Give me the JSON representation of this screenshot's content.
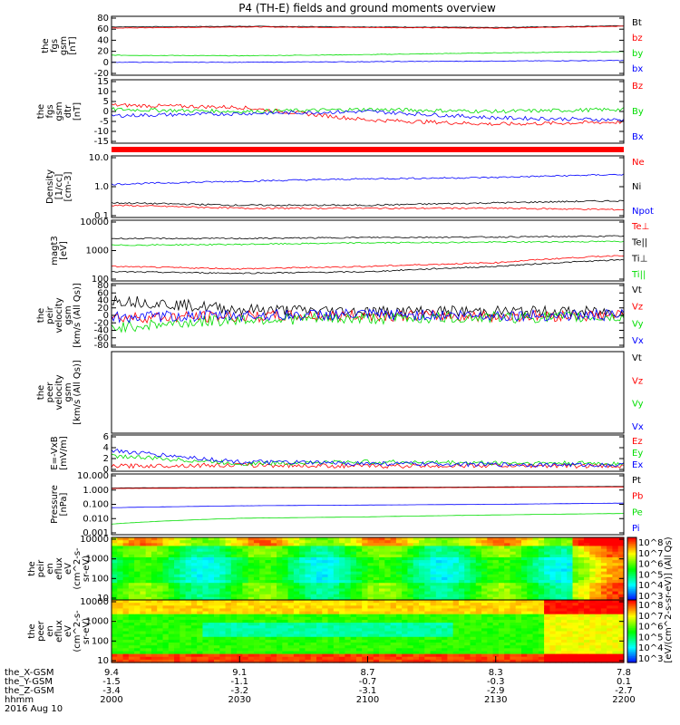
{
  "title": "P4 (TH-E) fields and ground moments overview",
  "colors": {
    "black": "#000000",
    "red": "#ff0000",
    "green": "#00dd00",
    "blue": "#0000ff"
  },
  "panels": [
    {
      "id": "fgs1",
      "ylabel": [
        "the",
        "fgs",
        "gsm",
        "[nT]"
      ],
      "ticks": [
        "80",
        "60",
        "40",
        "20",
        "0",
        "-20"
      ],
      "legend": [
        {
          "label": "Bt",
          "color": "black"
        },
        {
          "label": "bz",
          "color": "red"
        },
        {
          "label": "by",
          "color": "green"
        },
        {
          "label": "bx",
          "color": "blue"
        }
      ]
    },
    {
      "id": "fgs2",
      "ylabel": [
        "the",
        "fgs",
        "gsm",
        "dtr",
        "[nT]"
      ],
      "ticks": [
        "15",
        "10",
        "5",
        "0",
        "-5",
        "-10",
        "-15"
      ],
      "legend": [
        {
          "label": "Bz",
          "color": "red"
        },
        {
          "label": "By",
          "color": "green"
        },
        {
          "label": "Bx",
          "color": "blue"
        }
      ]
    },
    {
      "id": "density",
      "ylabel": [
        "Density",
        "[1/cc]",
        "[cm-3]"
      ],
      "ticks": [
        "10.0",
        "1.0",
        "0.1"
      ],
      "legend": [
        {
          "label": "Ne",
          "color": "red"
        },
        {
          "label": "Ni",
          "color": "black"
        },
        {
          "label": "Npot",
          "color": "blue"
        }
      ]
    },
    {
      "id": "temp",
      "ylabel": [
        "magt3",
        "[eV]"
      ],
      "ticks": [
        "10000",
        "1000",
        "100"
      ],
      "legend": [
        {
          "label": "Te⊥",
          "color": "red"
        },
        {
          "label": "Te||",
          "color": "black"
        },
        {
          "label": "Ti⊥",
          "color": "black"
        },
        {
          "label": "Ti||",
          "color": "green"
        }
      ]
    },
    {
      "id": "peir_vel",
      "ylabel": [
        "the",
        "peir",
        "velocity",
        "gsm",
        "[km/s (All Qs)]"
      ],
      "ticks": [
        "80",
        "60",
        "40",
        "20",
        "0",
        "-20",
        "-40",
        "-60",
        "-80"
      ],
      "legend": [
        {
          "label": "Vt",
          "color": "black"
        },
        {
          "label": "Vz",
          "color": "red"
        },
        {
          "label": "Vy",
          "color": "green"
        },
        {
          "label": "Vx",
          "color": "blue"
        }
      ]
    },
    {
      "id": "peer_vel",
      "ylabel": [
        "the",
        "peer",
        "velocity",
        "gsm",
        "[km/s (All Qs)]"
      ],
      "ticks": [],
      "legend": [
        {
          "label": "Vt",
          "color": "black"
        },
        {
          "label": "Vz",
          "color": "red"
        },
        {
          "label": "Vy",
          "color": "green"
        },
        {
          "label": "Vx",
          "color": "blue"
        }
      ]
    },
    {
      "id": "efield",
      "ylabel": [
        "E=-VxB",
        "[mV/m]"
      ],
      "ticks": [
        "6",
        "4",
        "2",
        "0"
      ],
      "legend": [
        {
          "label": "Ez",
          "color": "red"
        },
        {
          "label": "Ey",
          "color": "green"
        },
        {
          "label": "Ex",
          "color": "blue"
        }
      ]
    },
    {
      "id": "pressure",
      "ylabel": [
        "Pressure",
        "[nPa]"
      ],
      "ticks": [
        "10.000",
        "1.000",
        "0.100",
        "0.010",
        "0.001"
      ],
      "legend": [
        {
          "label": "Pt",
          "color": "black"
        },
        {
          "label": "Pb",
          "color": "red"
        },
        {
          "label": "Pe",
          "color": "green"
        },
        {
          "label": "Pi",
          "color": "blue"
        }
      ]
    },
    {
      "id": "peir_spec",
      "ylabel": [
        "the",
        "peir",
        "en",
        "eflux",
        "eV",
        "(cm^2-s-",
        "sr-eV)"
      ],
      "ticks": [
        "10000",
        "1000",
        "100",
        "10"
      ],
      "legend": []
    },
    {
      "id": "peer_spec",
      "ylabel": [
        "the",
        "peer",
        "en",
        "eflux",
        "eV",
        "(cm^2-s-",
        "sr-eV)"
      ],
      "ticks": [
        "10000",
        "1000",
        "100",
        "10"
      ],
      "legend": []
    }
  ],
  "colorbar": {
    "ticks": [
      "10^8",
      "10^7",
      "10^6",
      "10^5",
      "10^4",
      "10^3"
    ],
    "label": "[eV/(cm^2-s-sr-eV)] (All Qs)"
  },
  "xaxis": {
    "rows": [
      {
        "label": "the_X-GSM",
        "values": [
          "9.4",
          "9.1",
          "8.7",
          "8.3",
          "7.8"
        ]
      },
      {
        "label": "the_Y-GSM",
        "values": [
          "-1.5",
          "-1.1",
          "-0.7",
          "-0.3",
          "0.1"
        ]
      },
      {
        "label": "the_Z-GSM",
        "values": [
          "-3.4",
          "-3.2",
          "-3.1",
          "-2.9",
          "-2.7"
        ]
      },
      {
        "label": "hhmm",
        "values": [
          "2000",
          "2030",
          "2100",
          "2130",
          "2200"
        ]
      }
    ],
    "date": "2016 Aug 10"
  },
  "chart_data": {
    "type": "line",
    "title": "P4 (TH-E) fields and ground moments overview",
    "x": [
      "2000",
      "2030",
      "2100",
      "2130",
      "2200"
    ],
    "x_time_range": [
      "2016-08-10 20:00",
      "2016-08-10 22:00"
    ],
    "panels": [
      {
        "name": "the fgs gsm [nT]",
        "ylim": [
          -20,
          80
        ],
        "series": [
          {
            "name": "Bt",
            "values": [
              62,
              63,
              62,
              61,
              64
            ]
          },
          {
            "name": "bz",
            "values": [
              60,
              62,
              61,
              60,
              63
            ]
          },
          {
            "name": "by",
            "values": [
              14,
              13,
              15,
              18,
              20
            ]
          },
          {
            "name": "bx",
            "values": [
              2,
              2,
              3,
              4,
              5
            ]
          }
        ]
      },
      {
        "name": "the fgs gsm dtr [nT]",
        "ylim": [
          -15,
          15
        ],
        "series": [
          {
            "name": "Bz",
            "values": [
              3,
              2,
              -4,
              -6,
              -5
            ]
          },
          {
            "name": "By",
            "values": [
              1,
              0,
              1,
              0,
              1
            ]
          },
          {
            "name": "Bx",
            "values": [
              -2,
              -1,
              0,
              -3,
              -4
            ]
          }
        ]
      },
      {
        "name": "Density [1/cc]",
        "ylim": [
          0.1,
          10
        ],
        "log": true,
        "series": [
          {
            "name": "Ne",
            "values": [
              0.25,
              0.2,
              0.2,
              0.2,
              0.18
            ]
          },
          {
            "name": "Ni",
            "values": [
              0.3,
              0.25,
              0.25,
              0.3,
              0.35
            ]
          },
          {
            "name": "Npot",
            "values": [
              1.2,
              1.5,
              1.8,
              2.0,
              2.5
            ]
          }
        ]
      },
      {
        "name": "magt3 [eV]",
        "ylim": [
          100,
          10000
        ],
        "log": true,
        "series": [
          {
            "name": "Te⊥",
            "values": [
              300,
              250,
              300,
              400,
              700
            ]
          },
          {
            "name": "Te||",
            "values": [
              200,
              180,
              200,
              300,
              500
            ]
          },
          {
            "name": "Ti⊥",
            "values": [
              2500,
              2500,
              2700,
              2800,
              3000
            ]
          },
          {
            "name": "Ti||",
            "values": [
              1500,
              1600,
              1800,
              1900,
              2000
            ]
          }
        ]
      },
      {
        "name": "the peir velocity gsm [km/s (All Qs)]",
        "ylim": [
          -80,
          80
        ],
        "series": [
          {
            "name": "Vt",
            "values": [
              40,
              15,
              10,
              10,
              8
            ]
          },
          {
            "name": "Vz",
            "values": [
              -5,
              -3,
              0,
              -2,
              0
            ]
          },
          {
            "name": "Vy",
            "values": [
              -30,
              -10,
              -8,
              -5,
              -5
            ]
          },
          {
            "name": "Vx",
            "values": [
              -5,
              0,
              2,
              0,
              0
            ]
          }
        ]
      },
      {
        "name": "E=-VxB [mV/m]",
        "ylim": [
          -1,
          6
        ],
        "series": [
          {
            "name": "Ez",
            "values": [
              0,
              0.2,
              0,
              0.1,
              0
            ]
          },
          {
            "name": "Ey",
            "values": [
              2,
              0.5,
              0.8,
              0.6,
              0.5
            ]
          },
          {
            "name": "Ex",
            "values": [
              3,
              0.8,
              0.5,
              0.3,
              0.2
            ]
          }
        ]
      },
      {
        "name": "Pressure [nPa]",
        "ylim": [
          0.001,
          10
        ],
        "log": true,
        "series": [
          {
            "name": "Pt",
            "values": [
              1.2,
              1.3,
              1.3,
              1.4,
              1.5
            ]
          },
          {
            "name": "Pb",
            "values": [
              1.1,
              1.2,
              1.2,
              1.3,
              1.4
            ]
          },
          {
            "name": "Pe",
            "values": [
              0.005,
              0.012,
              0.015,
              0.02,
              0.025
            ]
          },
          {
            "name": "Pi",
            "values": [
              0.06,
              0.08,
              0.09,
              0.1,
              0.12
            ]
          }
        ]
      }
    ]
  }
}
